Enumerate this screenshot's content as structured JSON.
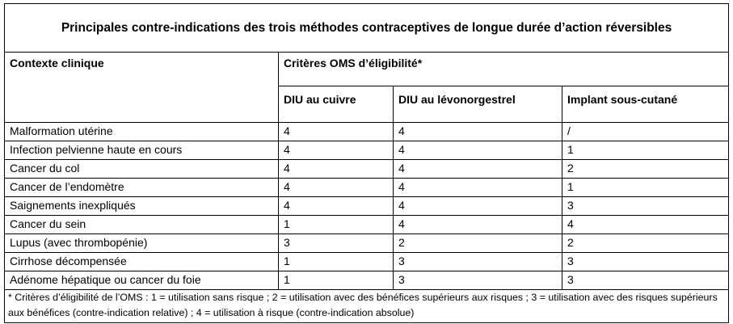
{
  "title": "Principales contre-indications des trois méthodes contraceptives de longue durée d’action réversibles",
  "header": {
    "context_label": "Contexte clinique",
    "criteria_label": "Critères OMS d’éligibilité*",
    "methods": [
      "DIU au cuivre",
      "DIU au lévonorgestrel",
      "Implant sous-cutané"
    ]
  },
  "rows": [
    {
      "context": "Malformation utérine",
      "values": [
        "4",
        "4",
        "/"
      ]
    },
    {
      "context": "Infection pelvienne haute en cours",
      "values": [
        "4",
        "4",
        "1"
      ]
    },
    {
      "context": "Cancer du col",
      "values": [
        "4",
        "4",
        "2"
      ]
    },
    {
      "context": "Cancer de l’endomètre",
      "values": [
        "4",
        "4",
        "1"
      ]
    },
    {
      "context": "Saignements inexpliqués",
      "values": [
        "4",
        "4",
        "3"
      ]
    },
    {
      "context": "Cancer du sein",
      "values": [
        "1",
        "4",
        "4"
      ]
    },
    {
      "context": "Lupus (avec thrombopénie)",
      "values": [
        "3",
        "2",
        "2"
      ]
    },
    {
      "context": "Cirrhose décompensée",
      "values": [
        "1",
        "3",
        "3"
      ]
    },
    {
      "context": "Adénome hépatique ou cancer du foie",
      "values": [
        "1",
        "3",
        "3"
      ]
    }
  ],
  "footnote": "* Critères d’éligibilité de l’OMS : 1 = utilisation sans risque ; 2 = utilisation avec des bénéfices supérieurs aux risques ; 3 = utilisation avec des risques supérieurs aux bénéfices (contre-indication relative) ; 4 = utilisation à risque (contre-indication absolue)"
}
